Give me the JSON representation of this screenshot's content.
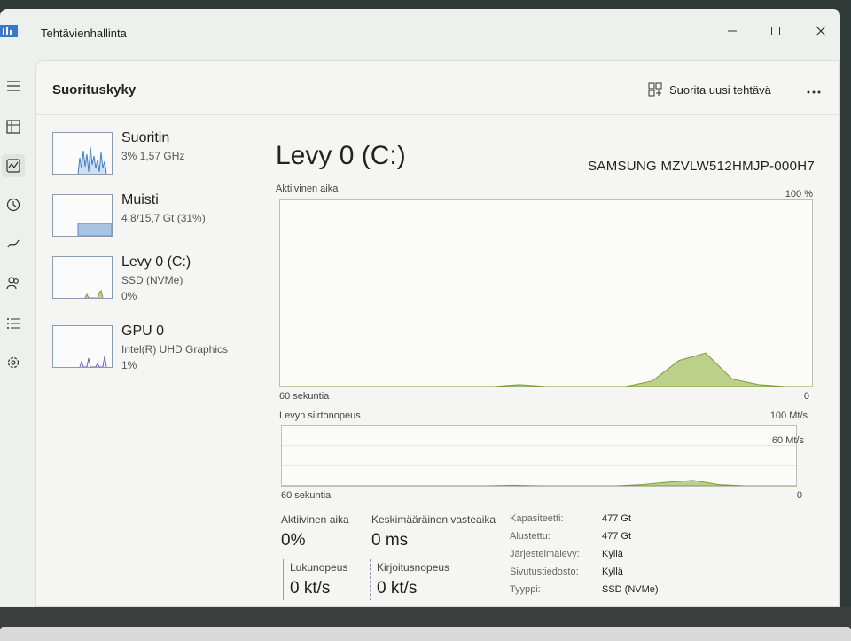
{
  "window": {
    "title": "Tehtävienhallinta"
  },
  "header": {
    "title": "Suorituskyky",
    "run_task_label": "Suorita uusi tehtävä"
  },
  "sidebar": {
    "items": [
      {
        "name": "Suoritin",
        "line1": "3% 1,57 GHz",
        "line2": ""
      },
      {
        "name": "Muisti",
        "line1": "4,8/15,7 Gt (31%)",
        "line2": ""
      },
      {
        "name": "Levy 0 (C:)",
        "line1": "SSD (NVMe)",
        "line2": "0%"
      },
      {
        "name": "GPU 0",
        "line1": "Intel(R) UHD Graphics",
        "line2": "1%"
      }
    ]
  },
  "main": {
    "title": "Levy 0 (C:)",
    "model": "SAMSUNG MZVLW512HMJP-000H7",
    "active_time_chart": {
      "label": "Aktiivinen aika",
      "max_label": "100 %",
      "time_label": "60 sekuntia",
      "zero_label": "0"
    },
    "transfer_chart": {
      "label": "Levyn siirtonopeus",
      "max_label": "100 Mt/s",
      "mid_label": "60 Mt/s",
      "time_label": "60 sekuntia",
      "zero_label": "0"
    },
    "stats": {
      "active_time_label": "Aktiivinen aika",
      "active_time_value": "0%",
      "avg_response_label": "Keskimääräinen vasteaika",
      "avg_response_value": "0 ms",
      "read_label": "Lukunopeus",
      "read_value": "0 kt/s",
      "write_label": "Kirjoitusnopeus",
      "write_value": "0 kt/s"
    },
    "properties": [
      {
        "key": "Kapasiteetti:",
        "value": "477 Gt"
      },
      {
        "key": "Alustettu:",
        "value": "477 Gt"
      },
      {
        "key": "Järjestelmälevy:",
        "value": "Kyllä"
      },
      {
        "key": "Sivutustiedosto:",
        "value": "Kyllä"
      },
      {
        "key": "Tyyppi:",
        "value": "SSD (NVMe)"
      }
    ]
  },
  "chart_data": [
    {
      "type": "area",
      "title": "Aktiivinen aika",
      "xlabel": "60 sekuntia",
      "ylabel": "",
      "ylim": [
        0,
        100
      ],
      "x": [
        0,
        3,
        6,
        9,
        12,
        15,
        18,
        21,
        24,
        27,
        30,
        33,
        36,
        39,
        42,
        45,
        48,
        51,
        54,
        57,
        60
      ],
      "series": [
        {
          "values": [
            0,
            0,
            0,
            0,
            0,
            0,
            0,
            0,
            0,
            1,
            0,
            0,
            0,
            0,
            3,
            14,
            18,
            4,
            1,
            0,
            0
          ]
        }
      ]
    },
    {
      "type": "area",
      "title": "Levyn siirtonopeus",
      "xlabel": "60 sekuntia",
      "ylabel": "",
      "ylim": [
        0,
        100
      ],
      "x": [
        0,
        3,
        6,
        9,
        12,
        15,
        18,
        21,
        24,
        27,
        30,
        33,
        36,
        39,
        42,
        45,
        48,
        51,
        54,
        57,
        60
      ],
      "series": [
        {
          "values": [
            0,
            0,
            0,
            0,
            0,
            0,
            0,
            0,
            0,
            1,
            0,
            0,
            0,
            0,
            2,
            6,
            9,
            2,
            0,
            0,
            0
          ]
        }
      ]
    }
  ],
  "colors": {
    "accent": "#5a8fc8",
    "disk_fill": "#bdd08a",
    "disk_line": "#7f9a3c",
    "memory_fill": "#a9c4e3",
    "gpu_line": "#6a5fb6"
  },
  "icons": {
    "nav": [
      "hamburger-icon",
      "processes-icon",
      "performance-icon",
      "app-history-icon",
      "startup-icon",
      "users-icon",
      "details-icon",
      "services-icon"
    ],
    "settings": "gear-icon"
  }
}
